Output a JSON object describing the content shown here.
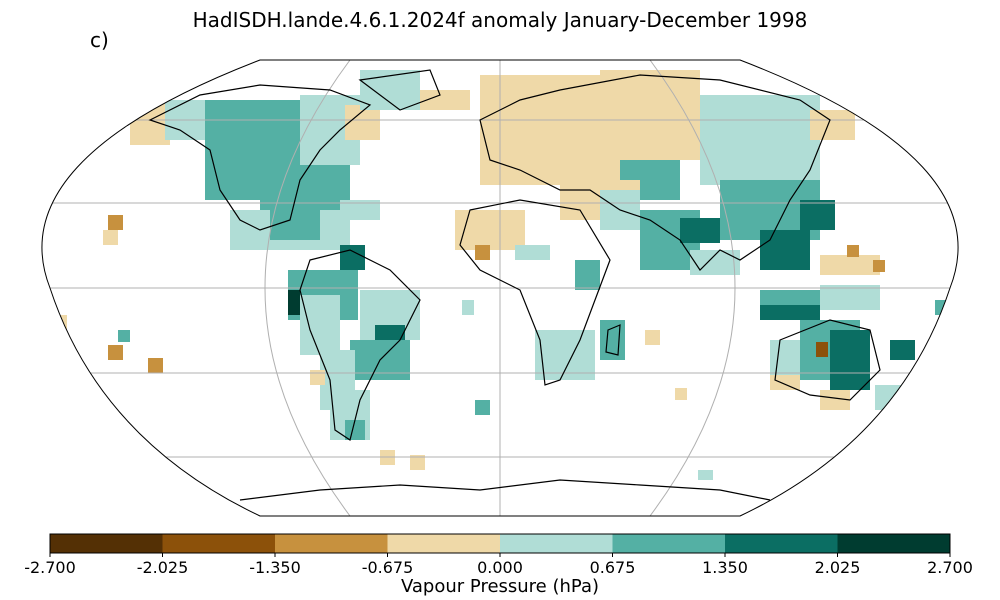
{
  "title": "HadISDH.lande.4.6.1.2024f anomaly January-December 1998",
  "panel_label": "c)",
  "colorbar": {
    "label": "Vapour Pressure (hPa)",
    "ticks": [
      "-2.700",
      "-2.025",
      "-1.350",
      "-0.675",
      "0.000",
      "0.675",
      "1.350",
      "2.025",
      "2.700"
    ],
    "colors": [
      "#543005",
      "#8c510a",
      "#c7913e",
      "#efd9a8",
      "#b0ddd6",
      "#54b0a4",
      "#0b6e63",
      "#003c30"
    ]
  },
  "map": {
    "projection": "Robinson",
    "gridlines": true,
    "regions": [
      {
        "name": "north-america",
        "anomaly_class": "positive-moderate"
      },
      {
        "name": "central-asia",
        "anomaly_class": "negative-small"
      },
      {
        "name": "southeast-asia",
        "anomaly_class": "positive-strong"
      },
      {
        "name": "south-america",
        "anomaly_class": "positive-moderate"
      },
      {
        "name": "australia",
        "anomaly_class": "positive-strong"
      },
      {
        "name": "southern-africa",
        "anomaly_class": "positive-small"
      },
      {
        "name": "sahara",
        "anomaly_class": "negative-small"
      }
    ]
  }
}
